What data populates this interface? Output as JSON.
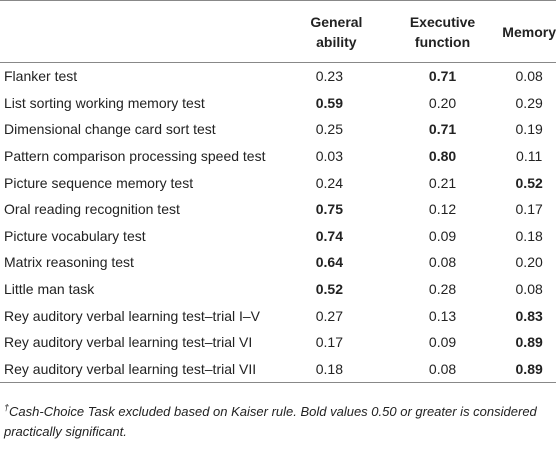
{
  "table": {
    "headers": [
      "",
      "General ability",
      "Executive function",
      "Memory"
    ],
    "rows": [
      {
        "label": "Flanker test",
        "values": [
          "0.23",
          "0.71",
          "0.08"
        ],
        "bold": [
          false,
          true,
          false
        ]
      },
      {
        "label": "List sorting working memory test",
        "values": [
          "0.59",
          "0.20",
          "0.29"
        ],
        "bold": [
          true,
          false,
          false
        ]
      },
      {
        "label": "Dimensional change card sort test",
        "values": [
          "0.25",
          "0.71",
          "0.19"
        ],
        "bold": [
          false,
          true,
          false
        ]
      },
      {
        "label": "Pattern comparison processing speed test",
        "values": [
          "0.03",
          "0.80",
          "0.11"
        ],
        "bold": [
          false,
          true,
          false
        ]
      },
      {
        "label": "Picture sequence memory test",
        "values": [
          "0.24",
          "0.21",
          "0.52"
        ],
        "bold": [
          false,
          false,
          true
        ]
      },
      {
        "label": "Oral reading recognition test",
        "values": [
          "0.75",
          "0.12",
          "0.17"
        ],
        "bold": [
          true,
          false,
          false
        ]
      },
      {
        "label": "Picture vocabulary test",
        "values": [
          "0.74",
          "0.09",
          "0.18"
        ],
        "bold": [
          true,
          false,
          false
        ]
      },
      {
        "label": "Matrix reasoning test",
        "values": [
          "0.64",
          "0.08",
          "0.20"
        ],
        "bold": [
          true,
          false,
          false
        ]
      },
      {
        "label": "Little man task",
        "values": [
          "0.52",
          "0.28",
          "0.08"
        ],
        "bold": [
          true,
          false,
          false
        ]
      },
      {
        "label": "Rey auditory verbal learning test–trial I–V",
        "values": [
          "0.27",
          "0.13",
          "0.83"
        ],
        "bold": [
          false,
          false,
          true
        ]
      },
      {
        "label": "Rey auditory verbal learning test–trial VI",
        "values": [
          "0.17",
          "0.09",
          "0.89"
        ],
        "bold": [
          false,
          false,
          true
        ]
      },
      {
        "label": "Rey auditory verbal learning test–trial VII",
        "values": [
          "0.18",
          "0.08",
          "0.89"
        ],
        "bold": [
          false,
          false,
          true
        ]
      }
    ]
  },
  "footnote": {
    "mark": "†",
    "text": "Cash-Choice Task excluded based on Kaiser rule. Bold values 0.50 or greater is considered practically significant."
  }
}
